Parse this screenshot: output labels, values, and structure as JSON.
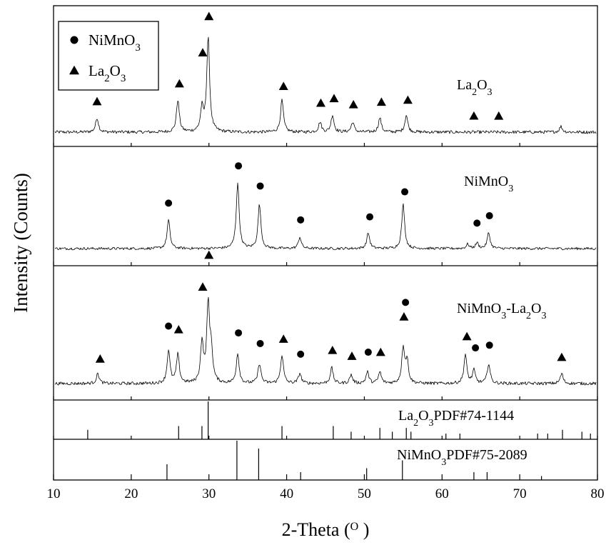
{
  "chart_data": {
    "type": "line",
    "xlabel": "2-Theta",
    "xlabel_unit": "O",
    "ylabel": "Intensity (Counts)",
    "xlim": [
      10,
      80
    ],
    "xticks": [
      10,
      20,
      30,
      40,
      50,
      60,
      70,
      80
    ],
    "legend": {
      "placement": "top-left",
      "entries": [
        {
          "marker": "circle",
          "label": "NiMnO",
          "sub": "3"
        },
        {
          "marker": "triangle",
          "label": "La",
          "sub": "2",
          "label2": "O",
          "sub2": "3"
        }
      ]
    },
    "series": [
      {
        "name": "La2O3",
        "label_parts": [
          [
            "La",
            ""
          ],
          [
            "2",
            "sub"
          ],
          [
            "O",
            ""
          ],
          [
            "3",
            "sub"
          ]
        ],
        "peaks": [
          {
            "x": 15.6,
            "h": 20
          },
          {
            "x": 26.0,
            "h": 45
          },
          {
            "x": 29.1,
            "h": 32
          },
          {
            "x": 29.9,
            "h": 132
          },
          {
            "x": 39.4,
            "h": 45
          },
          {
            "x": 44.3,
            "h": 14
          },
          {
            "x": 45.9,
            "h": 24
          },
          {
            "x": 48.5,
            "h": 14
          },
          {
            "x": 52.0,
            "h": 20
          },
          {
            "x": 55.4,
            "h": 24
          },
          {
            "x": 75.3,
            "h": 8
          }
        ],
        "markers": [
          {
            "x": 15.6,
            "shape": "triangle"
          },
          {
            "x": 26.2,
            "shape": "triangle"
          },
          {
            "x": 29.2,
            "shape": "triangle"
          },
          {
            "x": 30.0,
            "shape": "triangle"
          },
          {
            "x": 39.6,
            "shape": "triangle"
          },
          {
            "x": 44.4,
            "shape": "triangle"
          },
          {
            "x": 46.1,
            "shape": "triangle"
          },
          {
            "x": 48.6,
            "shape": "triangle"
          },
          {
            "x": 52.2,
            "shape": "triangle"
          },
          {
            "x": 55.6,
            "shape": "triangle"
          },
          {
            "x": 64.1,
            "shape": "triangle"
          },
          {
            "x": 67.3,
            "shape": "triangle"
          }
        ]
      },
      {
        "name": "NiMnO3",
        "label_parts": [
          [
            "NiMnO",
            ""
          ],
          [
            "3",
            "sub"
          ]
        ],
        "peaks": [
          {
            "x": 24.8,
            "h": 40
          },
          {
            "x": 33.7,
            "h": 92
          },
          {
            "x": 36.5,
            "h": 62
          },
          {
            "x": 41.7,
            "h": 16
          },
          {
            "x": 50.5,
            "h": 22
          },
          {
            "x": 55.0,
            "h": 62
          },
          {
            "x": 63.3,
            "h": 6
          },
          {
            "x": 64.5,
            "h": 8
          },
          {
            "x": 66.0,
            "h": 22
          }
        ],
        "markers": [
          {
            "x": 24.8,
            "shape": "circle"
          },
          {
            "x": 33.8,
            "shape": "circle"
          },
          {
            "x": 36.6,
            "shape": "circle"
          },
          {
            "x": 41.8,
            "shape": "circle"
          },
          {
            "x": 50.7,
            "shape": "circle"
          },
          {
            "x": 55.2,
            "shape": "circle"
          },
          {
            "x": 64.5,
            "shape": "circle"
          },
          {
            "x": 66.1,
            "shape": "circle"
          }
        ]
      },
      {
        "name": "NiMnO3-La2O3",
        "label_parts": [
          [
            "NiMnO",
            ""
          ],
          [
            "3",
            "sub"
          ],
          [
            "-La",
            ""
          ],
          [
            "2",
            "sub"
          ],
          [
            "O",
            ""
          ],
          [
            "3",
            "sub"
          ]
        ],
        "peaks": [
          {
            "x": 15.7,
            "h": 14
          },
          {
            "x": 24.8,
            "h": 46
          },
          {
            "x": 26.0,
            "h": 40
          },
          {
            "x": 29.1,
            "h": 56
          },
          {
            "x": 29.9,
            "h": 108
          },
          {
            "x": 30.3,
            "h": 40
          },
          {
            "x": 33.7,
            "h": 42
          },
          {
            "x": 36.5,
            "h": 28
          },
          {
            "x": 39.4,
            "h": 40
          },
          {
            "x": 41.7,
            "h": 14
          },
          {
            "x": 45.8,
            "h": 22
          },
          {
            "x": 48.3,
            "h": 12
          },
          {
            "x": 50.4,
            "h": 16
          },
          {
            "x": 52.0,
            "h": 16
          },
          {
            "x": 55.0,
            "h": 50
          },
          {
            "x": 55.5,
            "h": 30
          },
          {
            "x": 63.0,
            "h": 40
          },
          {
            "x": 64.1,
            "h": 18
          },
          {
            "x": 66.0,
            "h": 28
          },
          {
            "x": 75.4,
            "h": 14
          }
        ],
        "markers": [
          {
            "x": 16.0,
            "shape": "triangle"
          },
          {
            "x": 24.8,
            "shape": "circle"
          },
          {
            "x": 26.1,
            "shape": "triangle"
          },
          {
            "x": 29.2,
            "shape": "triangle"
          },
          {
            "x": 30.0,
            "shape": "triangle"
          },
          {
            "x": 33.8,
            "shape": "circle"
          },
          {
            "x": 36.6,
            "shape": "circle"
          },
          {
            "x": 39.6,
            "shape": "triangle"
          },
          {
            "x": 41.8,
            "shape": "circle"
          },
          {
            "x": 45.9,
            "shape": "triangle"
          },
          {
            "x": 48.4,
            "shape": "triangle"
          },
          {
            "x": 50.5,
            "shape": "circle"
          },
          {
            "x": 52.1,
            "shape": "triangle"
          },
          {
            "x": 55.1,
            "shape": "triangle"
          },
          {
            "x": 55.3,
            "shape": "circle"
          },
          {
            "x": 63.2,
            "shape": "triangle"
          },
          {
            "x": 64.3,
            "shape": "circle"
          },
          {
            "x": 66.1,
            "shape": "circle"
          },
          {
            "x": 75.4,
            "shape": "triangle"
          }
        ]
      }
    ],
    "reference_patterns": [
      {
        "label_parts": [
          [
            "La",
            ""
          ],
          [
            "2",
            "sub"
          ],
          [
            "O",
            ""
          ],
          [
            "3",
            "sub"
          ],
          [
            "PDF#74-1144",
            ""
          ]
        ],
        "lines": [
          {
            "x": 14.4,
            "i": 0.25
          },
          {
            "x": 26.1,
            "i": 0.35
          },
          {
            "x": 29.1,
            "i": 0.35
          },
          {
            "x": 29.9,
            "i": 1.0
          },
          {
            "x": 39.4,
            "i": 0.35
          },
          {
            "x": 46.0,
            "i": 0.35
          },
          {
            "x": 48.3,
            "i": 0.2
          },
          {
            "x": 52.0,
            "i": 0.3
          },
          {
            "x": 53.6,
            "i": 0.2
          },
          {
            "x": 55.4,
            "i": 0.3
          },
          {
            "x": 56.0,
            "i": 0.2
          },
          {
            "x": 60.5,
            "i": 0.15
          },
          {
            "x": 62.3,
            "i": 0.15
          },
          {
            "x": 72.3,
            "i": 0.15
          },
          {
            "x": 73.6,
            "i": 0.15
          },
          {
            "x": 75.5,
            "i": 0.25
          },
          {
            "x": 78.0,
            "i": 0.2
          },
          {
            "x": 79.1,
            "i": 0.15
          }
        ]
      },
      {
        "label_parts": [
          [
            "NiMnO",
            ""
          ],
          [
            "3",
            "sub"
          ],
          [
            "PDF#75-2089",
            ""
          ]
        ],
        "lines": [
          {
            "x": 24.6,
            "i": 0.4
          },
          {
            "x": 33.6,
            "i": 1.0
          },
          {
            "x": 36.4,
            "i": 0.8
          },
          {
            "x": 41.8,
            "i": 0.2
          },
          {
            "x": 50.3,
            "i": 0.3
          },
          {
            "x": 54.9,
            "i": 0.5
          },
          {
            "x": 64.1,
            "i": 0.2
          },
          {
            "x": 65.8,
            "i": 0.2
          },
          {
            "x": 72.8,
            "i": 0.1
          }
        ]
      }
    ]
  }
}
